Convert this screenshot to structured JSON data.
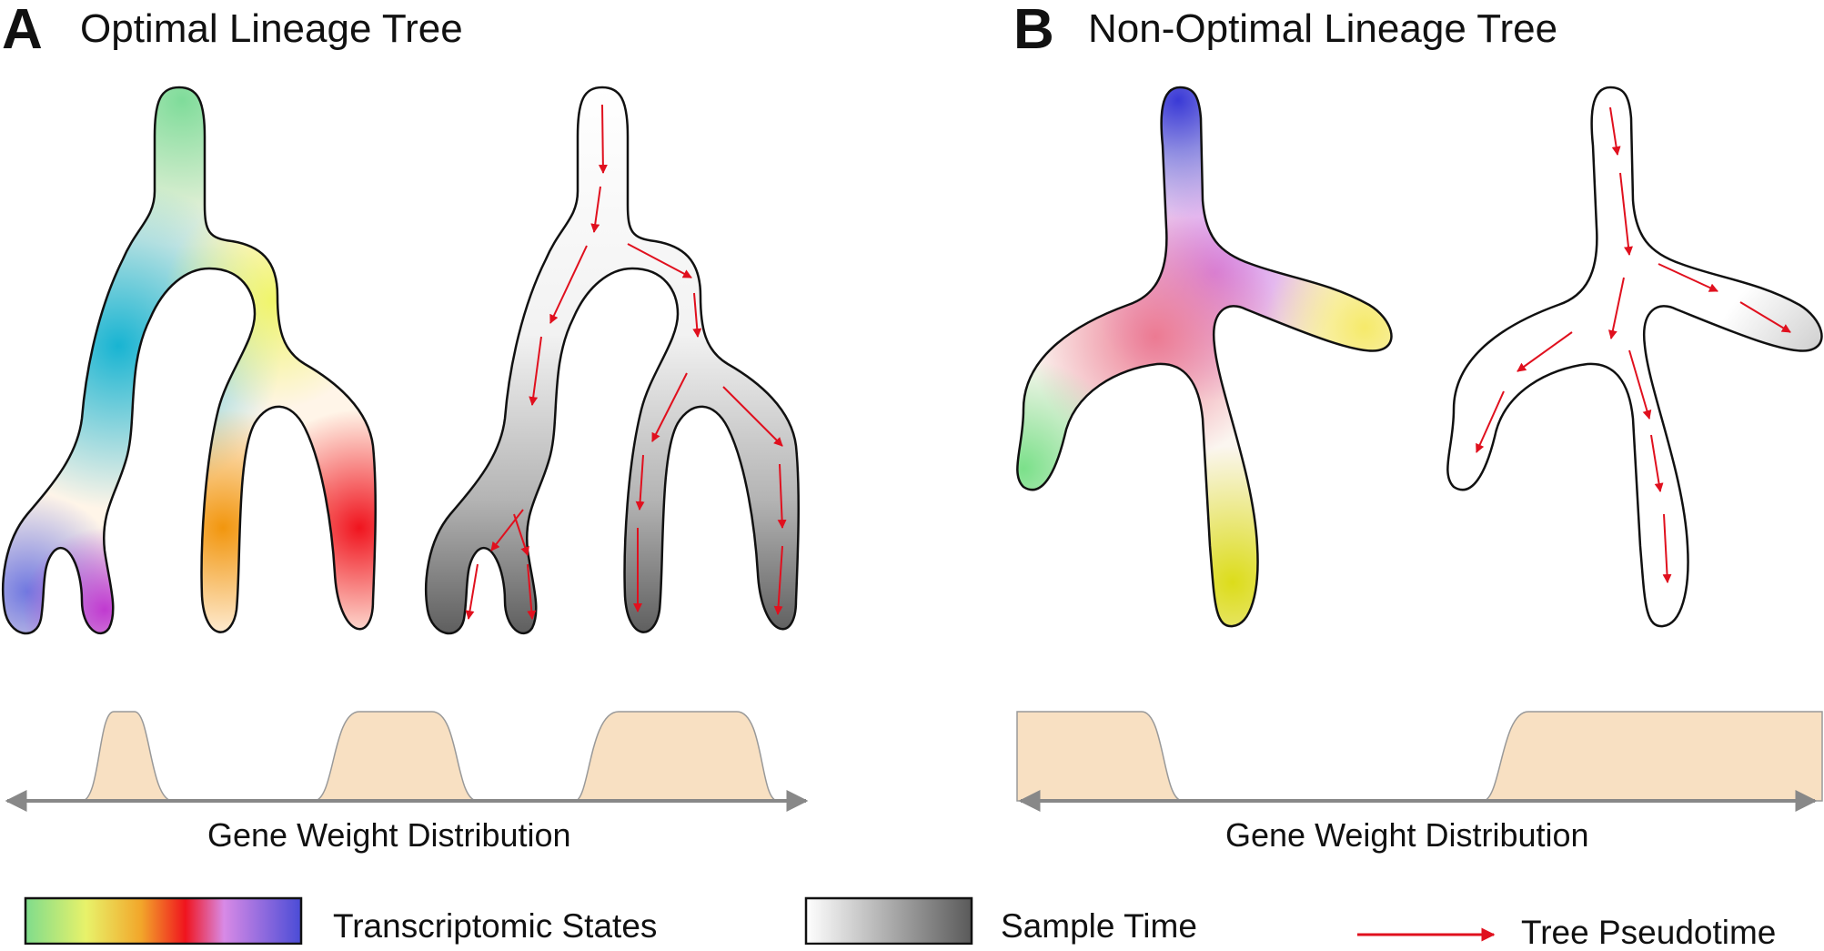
{
  "panel_a": {
    "letter": "A",
    "title": "Optimal Lineage Tree",
    "axis_label": "Gene Weight Distribution"
  },
  "panel_b": {
    "letter": "B",
    "title": "Non-Optimal Lineage Tree",
    "axis_label": "Gene Weight Distribution"
  },
  "legend": {
    "transcriptomic": "Transcriptomic States",
    "sample_time": "Sample Time",
    "pseudotime": "Tree Pseudotime"
  },
  "colors": {
    "arrow": "#e0101e",
    "distribution_fill": "#f8e0c2",
    "axis": "#888888",
    "outline": "#111111",
    "states_gradient": [
      "#7fdc8c",
      "#e8f26a",
      "#f2a62a",
      "#f0141e",
      "#d88ae6",
      "#4a4cd6"
    ],
    "time_gradient": [
      "#ffffff",
      "#5a5a5a"
    ]
  }
}
